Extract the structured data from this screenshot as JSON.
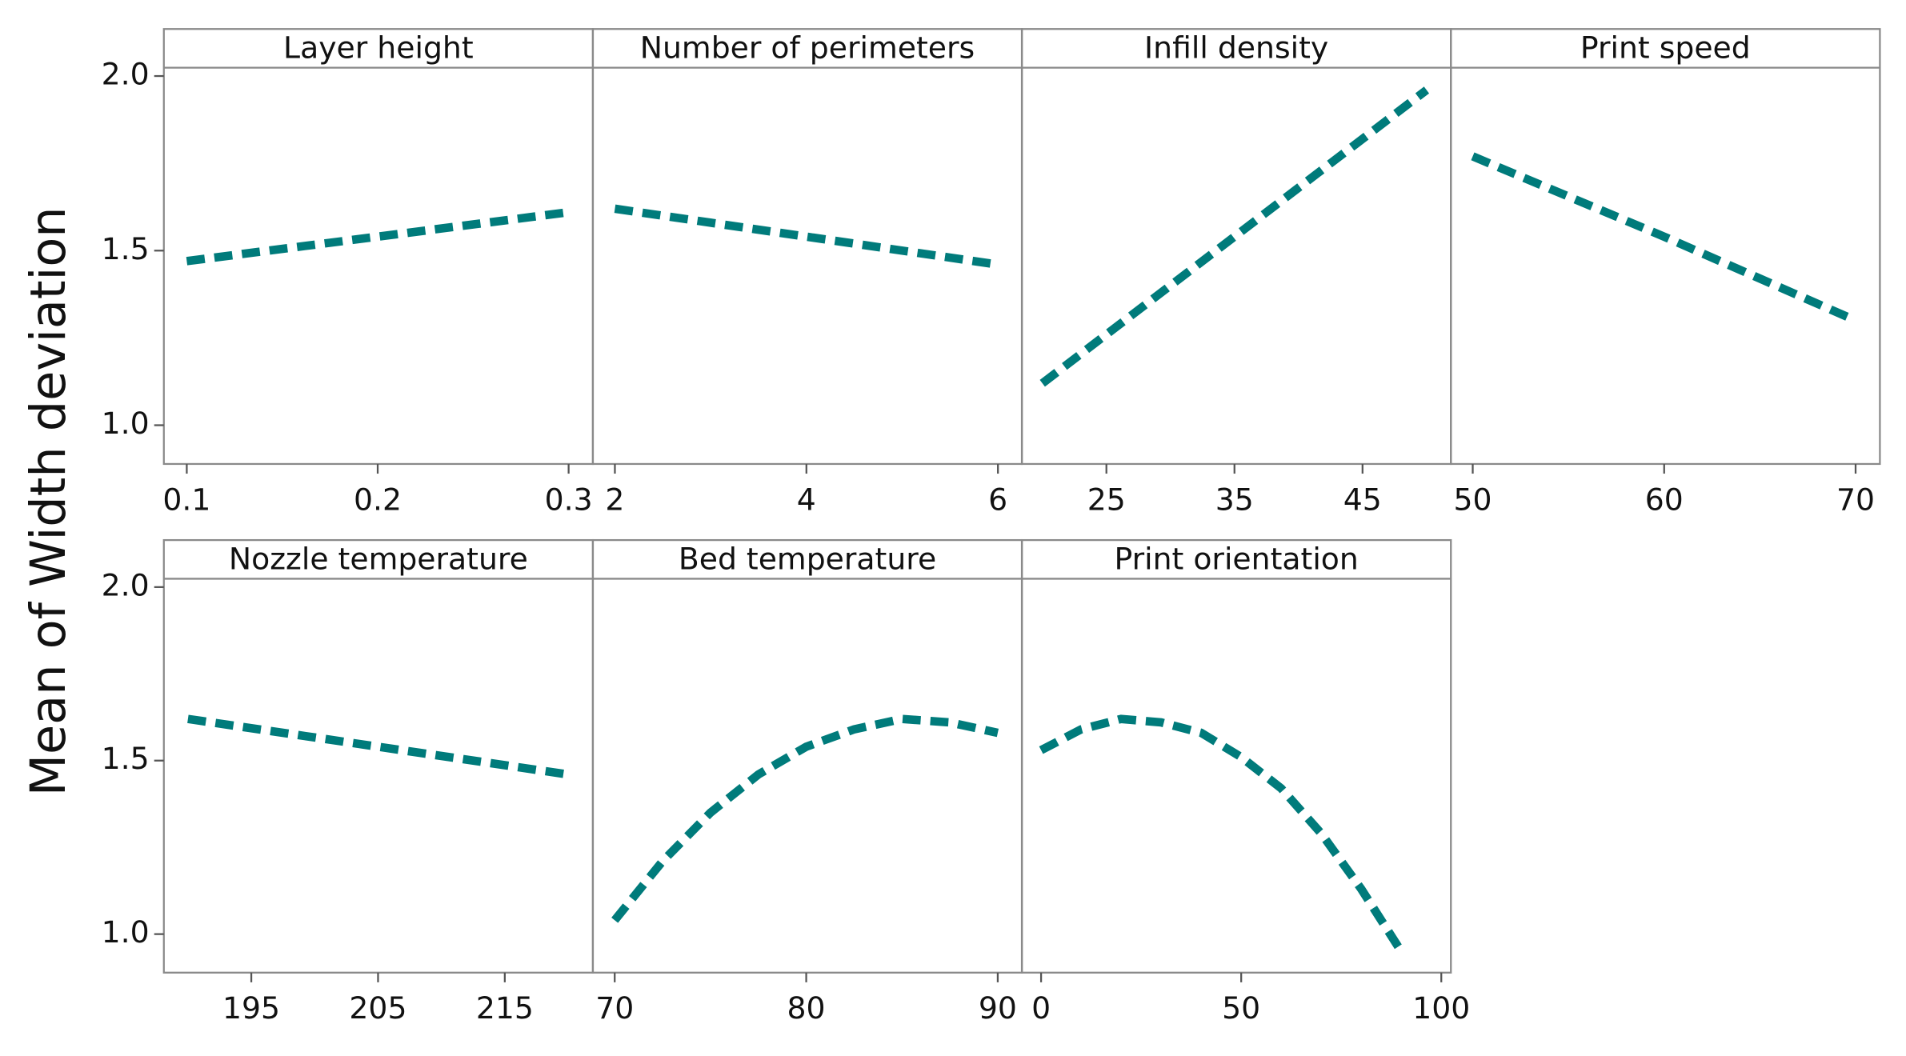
{
  "y_label": "Mean of Width deviation",
  "chart_data": [
    {
      "type": "line",
      "title": "Layer height",
      "color": "#007b7b",
      "line_style": "dashed",
      "x": [
        0.1,
        0.2,
        0.3
      ],
      "values": [
        1.47,
        1.54,
        1.61
      ],
      "xlim": [
        0.088,
        0.3127
      ],
      "xticks": [
        0.1,
        0.2,
        0.3
      ],
      "ylim": [
        0.889,
        2.024
      ],
      "yticks": [
        {
          "value": 1,
          "label": "1.0"
        },
        1.5,
        {
          "value": 2,
          "label": "2.0"
        }
      ]
    },
    {
      "type": "line",
      "title": "Number of perimeters",
      "color": "#007b7b",
      "line_style": "dashed",
      "x": [
        2,
        4,
        6
      ],
      "values": [
        1.62,
        1.54,
        1.46
      ],
      "xlim": [
        1.77,
        6.25
      ],
      "xticks": [
        2,
        4,
        6
      ],
      "ylim": [
        0.889,
        2.024
      ]
    },
    {
      "type": "line",
      "title": "Infill density",
      "color": "#007b7b",
      "line_style": "dashed",
      "x": [
        20,
        35,
        50
      ],
      "values": [
        1.12,
        1.54,
        1.96
      ],
      "xlim": [
        18.4,
        51.9
      ],
      "xticks": [
        25,
        35,
        45
      ],
      "ylim": [
        0.889,
        2.024
      ]
    },
    {
      "type": "line",
      "title": "Print speed",
      "color": "#007b7b",
      "line_style": "dashed",
      "x": [
        50,
        60,
        70
      ],
      "values": [
        1.77,
        1.54,
        1.3
      ],
      "xlim": [
        48.86,
        71.27
      ],
      "xticks": [
        50,
        60,
        70
      ],
      "ylim": [
        0.889,
        2.024
      ]
    },
    {
      "type": "line",
      "title": "Nozzle temperature",
      "color": "#007b7b",
      "line_style": "dashed",
      "x": [
        190,
        205,
        220
      ],
      "values": [
        1.62,
        1.54,
        1.46
      ],
      "xlim": [
        188.1,
        221.95
      ],
      "xticks": [
        195,
        205,
        215
      ],
      "ylim": [
        0.889,
        2.024
      ],
      "yticks": [
        {
          "value": 1,
          "label": "1.0"
        },
        1.5,
        {
          "value": 2,
          "label": "2.0"
        }
      ]
    },
    {
      "type": "line",
      "title": "Bed temperature",
      "color": "#007b7b",
      "line_style": "dashed",
      "x": [
        70,
        72.5,
        75,
        77.5,
        80,
        82.5,
        85,
        87.5,
        90
      ],
      "values": [
        1.04,
        1.21,
        1.35,
        1.46,
        1.54,
        1.59,
        1.62,
        1.61,
        1.58
      ],
      "xlim": [
        68.86,
        91.26
      ],
      "xticks": [
        70,
        80,
        90
      ],
      "ylim": [
        0.889,
        2.024
      ]
    },
    {
      "type": "line",
      "title": "Print orientation",
      "color": "#007b7b",
      "line_style": "dashed",
      "x": [
        0,
        10,
        20,
        30,
        40,
        50,
        60,
        70,
        80,
        90
      ],
      "values": [
        1.53,
        1.59,
        1.62,
        1.61,
        1.58,
        1.51,
        1.42,
        1.29,
        1.13,
        0.95
      ],
      "xlim": [
        -4.8,
        102.4
      ],
      "xticks": [
        0,
        50,
        100
      ],
      "ylim": [
        0.889,
        2.024
      ]
    }
  ]
}
